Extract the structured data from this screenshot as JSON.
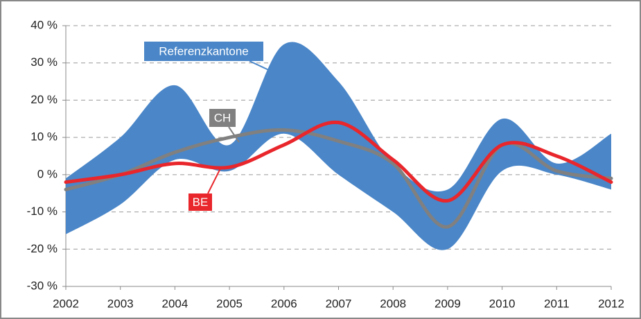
{
  "chart_data": {
    "type": "line",
    "categories": [
      "2002",
      "2003",
      "2004",
      "2005",
      "2006",
      "2007",
      "2008",
      "2009",
      "2010",
      "2011",
      "2012"
    ],
    "band": {
      "name": "Referenzkantone",
      "color": "#4a86c8",
      "upper": [
        -1,
        10,
        24,
        8,
        35,
        25,
        3,
        -4,
        15,
        3,
        11
      ],
      "lower": [
        -16,
        -8,
        4,
        1,
        11,
        0,
        -10,
        -20,
        1,
        0,
        -4
      ]
    },
    "series": [
      {
        "name": "CH",
        "color": "#808080",
        "values": [
          -4,
          0,
          6,
          10,
          12,
          9,
          3,
          -14,
          8,
          1,
          -1
        ]
      },
      {
        "name": "BE",
        "color": "#e8262b",
        "values": [
          -2,
          0,
          3,
          2,
          8,
          14,
          4,
          -7,
          8,
          5,
          -2
        ]
      }
    ],
    "ylim": [
      -30,
      40
    ],
    "yticks": [
      {
        "value": -30,
        "label": "-30 %"
      },
      {
        "value": -20,
        "label": "-20 %"
      },
      {
        "value": -10,
        "label": "-10 %"
      },
      {
        "value": 0,
        "label": "0 %"
      },
      {
        "value": 10,
        "label": "10 %"
      },
      {
        "value": 20,
        "label": "20 %"
      },
      {
        "value": 30,
        "label": "30 %"
      },
      {
        "value": 40,
        "label": "40 %"
      }
    ],
    "grid": true
  }
}
